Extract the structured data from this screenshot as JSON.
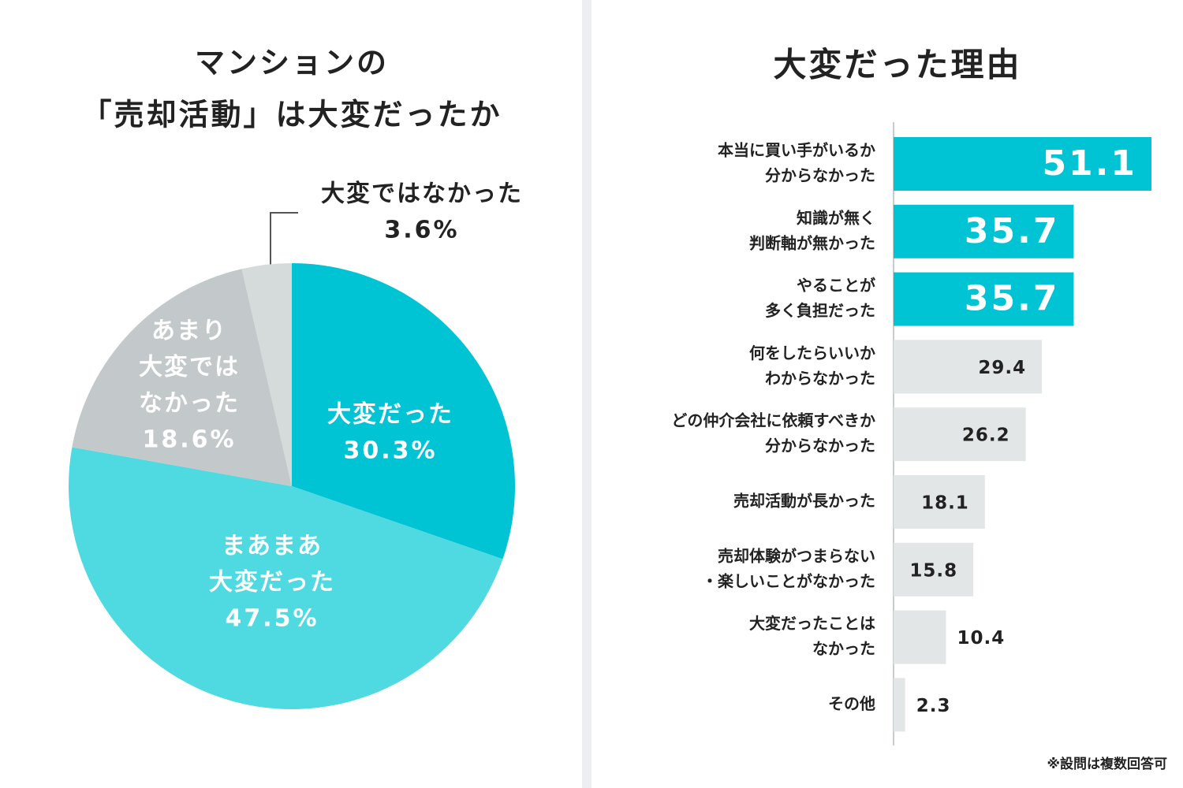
{
  "chart_data": [
    {
      "type": "pie",
      "title": [
        "マンションの",
        "「売却活動」は大変だったか"
      ],
      "categories": [
        [
          "大変だった"
        ],
        [
          "まあまあ",
          "大変だった"
        ],
        [
          "あまり",
          "大変では",
          "なかった"
        ],
        [
          "大変ではなかった"
        ]
      ],
      "values": [
        30.3,
        47.5,
        18.6,
        3.6
      ],
      "value_labels": [
        "30.3%",
        "47.5%",
        "18.6%",
        "3.6%"
      ],
      "colors": [
        "#00c4d4",
        "#4fd9e0",
        "#c3c9ca",
        "#d5dadb"
      ]
    },
    {
      "type": "hbar",
      "title": "大変だった理由",
      "categories": [
        [
          "本当に買い手がいるか",
          "分からなかった"
        ],
        [
          "知識が無く",
          "判断軸が無かった"
        ],
        [
          "やることが",
          "多く負担だった"
        ],
        [
          "何をしたらいいか",
          "わからなかった"
        ],
        [
          "どの仲介会社に依頼すべきか",
          "分からなかった"
        ],
        [
          "売却活動が長かった"
        ],
        [
          "売却体験がつまらない",
          "・楽しいことがなかった"
        ],
        [
          "大変だったことは",
          "なかった"
        ],
        [
          "その他"
        ]
      ],
      "values": [
        51.1,
        35.7,
        35.7,
        29.4,
        26.2,
        18.1,
        15.8,
        10.4,
        2.3
      ],
      "colors": [
        "#00c4d4",
        "#00c4d4",
        "#00c4d4",
        "#e3e6e7",
        "#e3e6e7",
        "#e3e6e7",
        "#e3e6e7",
        "#e3e6e7",
        "#e3e6e7"
      ],
      "xlim": [
        0,
        51.1
      ],
      "note": "※設問は複数回答可"
    }
  ]
}
